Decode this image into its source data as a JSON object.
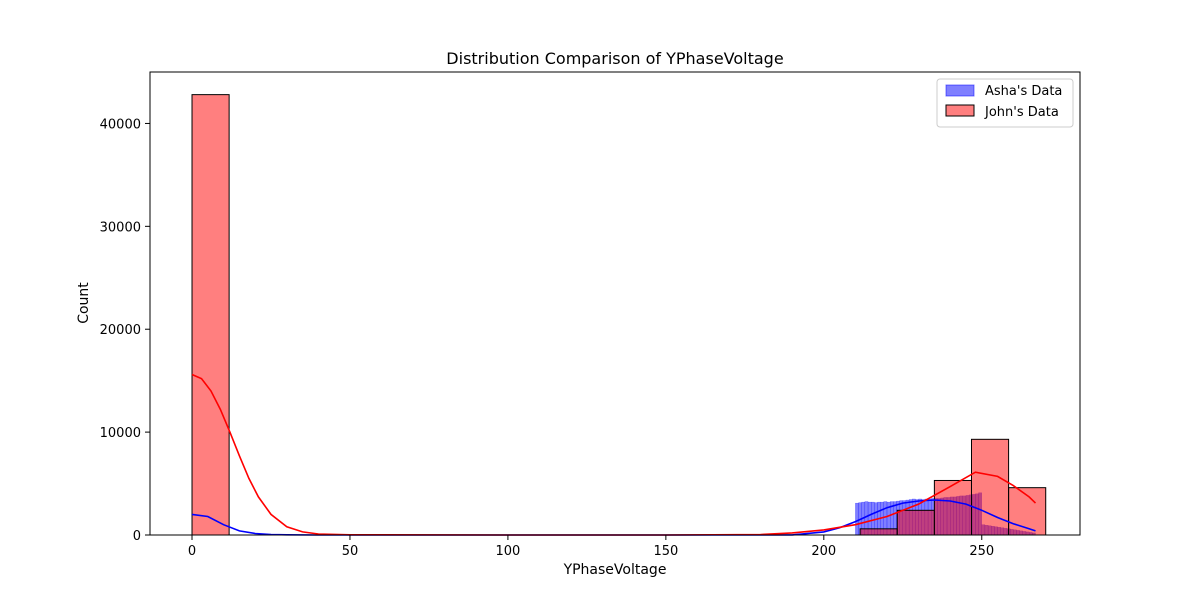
{
  "chart_data": {
    "type": "bar",
    "title": "Distribution Comparison of YPhaseVoltage",
    "xlabel": "YPhaseVoltage",
    "ylabel": "Count",
    "xlim": [
      -13.3,
      281.1
    ],
    "ylim": [
      0,
      45000
    ],
    "xticks": [
      0,
      50,
      100,
      150,
      200,
      250
    ],
    "yticks": [
      0,
      10000,
      20000,
      30000,
      40000
    ],
    "grid": false,
    "legend_position": "top-right",
    "series": [
      {
        "name": "Asha's Data",
        "color": "#0000ff",
        "kind": "histogram",
        "bins_start": 210,
        "bins_width": 1,
        "values": [
          3100,
          3150,
          3200,
          3250,
          3200,
          3200,
          3150,
          3200,
          3200,
          3250,
          3200,
          3250,
          3250,
          3300,
          3350,
          3350,
          3400,
          3450,
          3500,
          3450,
          3500,
          3450,
          3500,
          3500,
          3550,
          3550,
          3550,
          3600,
          3650,
          3650,
          3700,
          3700,
          3750,
          3800,
          3800,
          3850,
          3900,
          3950,
          4000,
          4100,
          1000,
          950,
          900,
          850,
          800,
          750,
          700,
          650,
          600,
          550,
          500,
          450,
          400,
          350,
          300,
          250,
          200
        ],
        "kde": {
          "x": [
            0,
            5,
            10,
            15,
            20,
            25,
            30,
            40,
            60,
            100,
            150,
            190,
            200,
            205,
            210,
            215,
            220,
            225,
            230,
            235,
            240,
            245,
            250,
            255,
            260,
            265,
            267
          ],
          "y": [
            2000,
            1800,
            1000,
            400,
            150,
            50,
            20,
            0,
            0,
            0,
            0,
            10,
            300,
            700,
            1300,
            2000,
            2650,
            3100,
            3300,
            3400,
            3300,
            3000,
            2400,
            1700,
            1100,
            600,
            400
          ]
        }
      },
      {
        "name": "John's Data",
        "color": "#ff0000",
        "kind": "histogram",
        "bins_start": 0,
        "bins_width": 11.75,
        "values": [
          42800,
          0,
          0,
          0,
          0,
          0,
          0,
          0,
          0,
          0,
          0,
          0,
          0,
          0,
          0,
          0,
          0,
          0,
          600,
          2400,
          5300,
          9300,
          4600
        ],
        "kde": {
          "x": [
            0,
            3,
            6,
            9,
            12,
            15,
            18,
            21,
            25,
            30,
            35,
            40,
            50,
            100,
            150,
            180,
            190,
            200,
            210,
            220,
            230,
            240,
            248,
            255,
            260,
            265,
            267
          ],
          "y": [
            15600,
            15200,
            14000,
            12200,
            10000,
            7700,
            5500,
            3700,
            2000,
            800,
            300,
            100,
            20,
            0,
            0,
            50,
            200,
            500,
            1000,
            1800,
            3000,
            4700,
            6100,
            5700,
            4800,
            3700,
            3100
          ]
        }
      }
    ]
  }
}
